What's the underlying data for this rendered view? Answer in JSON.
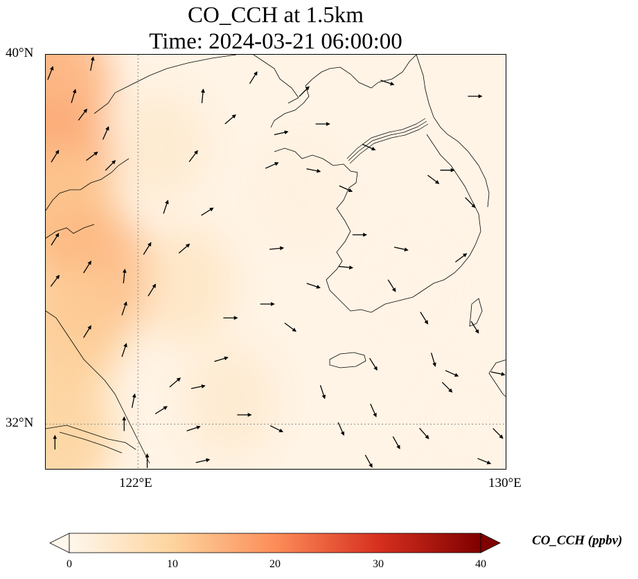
{
  "title": {
    "line1": "CO_CCH at 1.5km",
    "line2": "Time: 2024-03-21 06:00:00"
  },
  "map": {
    "lon_range": [
      120,
      130
    ],
    "lat_range": [
      31,
      40
    ],
    "lat_ticks": [
      {
        "value": 40,
        "label": "40°N"
      },
      {
        "value": 32,
        "label": "32°N"
      }
    ],
    "lon_ticks": [
      {
        "value": 122,
        "label": "122°E"
      },
      {
        "value": 130,
        "label": "130°E"
      }
    ],
    "gridlines": "dotted at 122°E and 32°N",
    "colormap": "OrRd",
    "field_description_value_range_ppbv": [
      0,
      20
    ]
  },
  "colorbar": {
    "label": "CO_CCH (ppbv)",
    "min": 0,
    "max": 40,
    "extend": "both",
    "ticks": [
      "0",
      "10",
      "20",
      "30",
      "40"
    ]
  },
  "chart_data": {
    "type": "heatmap",
    "title": "CO_CCH at 1.5km",
    "subtitle": "Time: 2024-03-21 06:00:00",
    "variable": "CO_CCH",
    "units": "ppbv",
    "level": "1.5km",
    "colors": {
      "c0": "#fff7ec",
      "c10": "#fdd49e",
      "c20": "#fc8d59",
      "c30": "#d7301f",
      "c40": "#7f0000",
      "land_outline": "#000000"
    },
    "concentration_samples": [
      {
        "lon": 120.1,
        "lat": 39.3,
        "value": 15
      },
      {
        "lon": 120.1,
        "lat": 37.5,
        "value": 16
      },
      {
        "lon": 120.3,
        "lat": 36.6,
        "value": 12
      },
      {
        "lon": 121.0,
        "lat": 35.2,
        "value": 14
      },
      {
        "lon": 120.5,
        "lat": 34.0,
        "value": 11
      },
      {
        "lon": 120.3,
        "lat": 31.8,
        "value": 10
      },
      {
        "lon": 122.5,
        "lat": 38.0,
        "value": 5
      },
      {
        "lon": 123.0,
        "lat": 35.0,
        "value": 7
      },
      {
        "lon": 124.0,
        "lat": 32.5,
        "value": 5
      },
      {
        "lon": 125.5,
        "lat": 37.0,
        "value": 2
      },
      {
        "lon": 128.0,
        "lat": 35.0,
        "value": 1
      },
      {
        "lon": 129.0,
        "lat": 32.0,
        "value": 1
      }
    ],
    "wind_vectors": [
      {
        "lon": 120.1,
        "lat": 39.6,
        "u": 0.4,
        "v": 1.0
      },
      {
        "lon": 120.6,
        "lat": 39.1,
        "u": 0.3,
        "v": 1.0
      },
      {
        "lon": 121.0,
        "lat": 39.8,
        "u": 0.2,
        "v": 1.0
      },
      {
        "lon": 120.8,
        "lat": 38.7,
        "u": 0.6,
        "v": 0.8
      },
      {
        "lon": 121.3,
        "lat": 38.3,
        "u": 0.4,
        "v": 0.9
      },
      {
        "lon": 120.2,
        "lat": 37.8,
        "u": 0.5,
        "v": 0.8
      },
      {
        "lon": 121.0,
        "lat": 37.8,
        "u": 0.8,
        "v": 0.6
      },
      {
        "lon": 121.4,
        "lat": 37.6,
        "u": 0.7,
        "v": 0.7
      },
      {
        "lon": 122.6,
        "lat": 36.7,
        "u": 0.3,
        "v": 0.9
      },
      {
        "lon": 120.2,
        "lat": 36.0,
        "u": 0.5,
        "v": 0.8
      },
      {
        "lon": 120.9,
        "lat": 35.4,
        "u": 0.5,
        "v": 0.8
      },
      {
        "lon": 120.2,
        "lat": 35.1,
        "u": 0.6,
        "v": 0.8
      },
      {
        "lon": 121.7,
        "lat": 35.2,
        "u": 0.1,
        "v": 1.0
      },
      {
        "lon": 121.7,
        "lat": 34.5,
        "u": 0.3,
        "v": 0.9
      },
      {
        "lon": 120.9,
        "lat": 34.0,
        "u": 0.5,
        "v": 0.8
      },
      {
        "lon": 121.7,
        "lat": 33.6,
        "u": 0.3,
        "v": 0.9
      },
      {
        "lon": 121.9,
        "lat": 32.5,
        "u": 0.2,
        "v": 1.0
      },
      {
        "lon": 120.2,
        "lat": 31.6,
        "u": 0.0,
        "v": 1.0
      },
      {
        "lon": 122.2,
        "lat": 31.2,
        "u": 0.0,
        "v": 1.0
      },
      {
        "lon": 121.7,
        "lat": 32.0,
        "u": 0.0,
        "v": 1.0
      },
      {
        "lon": 122.2,
        "lat": 35.8,
        "u": 0.5,
        "v": 0.8
      },
      {
        "lon": 122.3,
        "lat": 34.9,
        "u": 0.5,
        "v": 0.8
      },
      {
        "lon": 123.0,
        "lat": 35.8,
        "u": 0.7,
        "v": 0.6
      },
      {
        "lon": 123.5,
        "lat": 36.6,
        "u": 0.8,
        "v": 0.5
      },
      {
        "lon": 123.2,
        "lat": 37.8,
        "u": 0.6,
        "v": 0.8
      },
      {
        "lon": 124.0,
        "lat": 38.6,
        "u": 0.7,
        "v": 0.6
      },
      {
        "lon": 124.5,
        "lat": 39.5,
        "u": 0.5,
        "v": 0.8
      },
      {
        "lon": 123.4,
        "lat": 39.1,
        "u": 0.1,
        "v": 1.0
      },
      {
        "lon": 122.8,
        "lat": 32.9,
        "u": 0.7,
        "v": 0.6
      },
      {
        "lon": 122.5,
        "lat": 32.3,
        "u": 0.8,
        "v": 0.5
      },
      {
        "lon": 123.8,
        "lat": 33.4,
        "u": 1.0,
        "v": 0.3
      },
      {
        "lon": 123.3,
        "lat": 32.8,
        "u": 1.0,
        "v": 0.2
      },
      {
        "lon": 124.3,
        "lat": 32.2,
        "u": 1.0,
        "v": 0.0
      },
      {
        "lon": 124.0,
        "lat": 34.3,
        "u": 1.0,
        "v": 0.0
      },
      {
        "lon": 125.0,
        "lat": 35.8,
        "u": 1.0,
        "v": 0.1
      },
      {
        "lon": 124.8,
        "lat": 34.6,
        "u": 1.0,
        "v": 0.0
      },
      {
        "lon": 125.3,
        "lat": 34.1,
        "u": 0.8,
        "v": -0.6
      },
      {
        "lon": 124.9,
        "lat": 37.6,
        "u": 0.9,
        "v": 0.4
      },
      {
        "lon": 125.1,
        "lat": 38.3,
        "u": 0.9,
        "v": 0.2
      },
      {
        "lon": 125.6,
        "lat": 39.2,
        "u": 0.7,
        "v": 0.7
      },
      {
        "lon": 126.0,
        "lat": 38.5,
        "u": 1.0,
        "v": 0.0
      },
      {
        "lon": 125.8,
        "lat": 37.5,
        "u": 1.0,
        "v": -0.2
      },
      {
        "lon": 127.0,
        "lat": 38.0,
        "u": 0.9,
        "v": -0.4
      },
      {
        "lon": 126.5,
        "lat": 37.1,
        "u": 0.9,
        "v": -0.4
      },
      {
        "lon": 126.8,
        "lat": 36.1,
        "u": 1.0,
        "v": 0.0
      },
      {
        "lon": 125.8,
        "lat": 35.0,
        "u": 0.9,
        "v": -0.3
      },
      {
        "lon": 126.5,
        "lat": 35.4,
        "u": 1.0,
        "v": -0.1
      },
      {
        "lon": 128.7,
        "lat": 37.5,
        "u": 1.0,
        "v": 0.0
      },
      {
        "lon": 129.3,
        "lat": 39.1,
        "u": 1.0,
        "v": 0.0
      },
      {
        "lon": 127.4,
        "lat": 39.4,
        "u": 0.9,
        "v": -0.3
      },
      {
        "lon": 128.4,
        "lat": 37.3,
        "u": 0.8,
        "v": -0.6
      },
      {
        "lon": 129.2,
        "lat": 36.8,
        "u": 0.7,
        "v": -0.7
      },
      {
        "lon": 129.0,
        "lat": 35.6,
        "u": 0.8,
        "v": 0.6
      },
      {
        "lon": 127.7,
        "lat": 35.8,
        "u": 0.9,
        "v": -0.2
      },
      {
        "lon": 127.5,
        "lat": 35.0,
        "u": 0.5,
        "v": -0.8
      },
      {
        "lon": 128.2,
        "lat": 34.3,
        "u": 0.5,
        "v": -0.8
      },
      {
        "lon": 129.3,
        "lat": 34.1,
        "u": 0.5,
        "v": -0.8
      },
      {
        "lon": 127.1,
        "lat": 33.3,
        "u": 0.5,
        "v": -0.8
      },
      {
        "lon": 128.4,
        "lat": 33.4,
        "u": 0.3,
        "v": -1.0
      },
      {
        "lon": 126.0,
        "lat": 32.7,
        "u": 0.3,
        "v": -0.9
      },
      {
        "lon": 127.1,
        "lat": 32.3,
        "u": 0.4,
        "v": -0.9
      },
      {
        "lon": 128.7,
        "lat": 32.8,
        "u": 0.7,
        "v": -0.7
      },
      {
        "lon": 128.8,
        "lat": 33.1,
        "u": 0.9,
        "v": -0.4
      },
      {
        "lon": 129.8,
        "lat": 33.1,
        "u": 1.0,
        "v": -0.2
      },
      {
        "lon": 126.4,
        "lat": 31.9,
        "u": 0.4,
        "v": -0.9
      },
      {
        "lon": 127.6,
        "lat": 31.6,
        "u": 0.5,
        "v": -0.9
      },
      {
        "lon": 128.2,
        "lat": 31.8,
        "u": 0.7,
        "v": -0.8
      },
      {
        "lon": 129.5,
        "lat": 31.2,
        "u": 1.0,
        "v": -0.4
      },
      {
        "lon": 129.8,
        "lat": 31.8,
        "u": 0.7,
        "v": -0.7
      },
      {
        "lon": 127.0,
        "lat": 31.2,
        "u": 0.5,
        "v": -0.9
      },
      {
        "lon": 125.0,
        "lat": 31.9,
        "u": 0.8,
        "v": -0.4
      },
      {
        "lon": 123.4,
        "lat": 31.2,
        "u": 0.9,
        "v": 0.2
      },
      {
        "lon": 123.2,
        "lat": 31.9,
        "u": 0.9,
        "v": 0.3
      }
    ]
  }
}
